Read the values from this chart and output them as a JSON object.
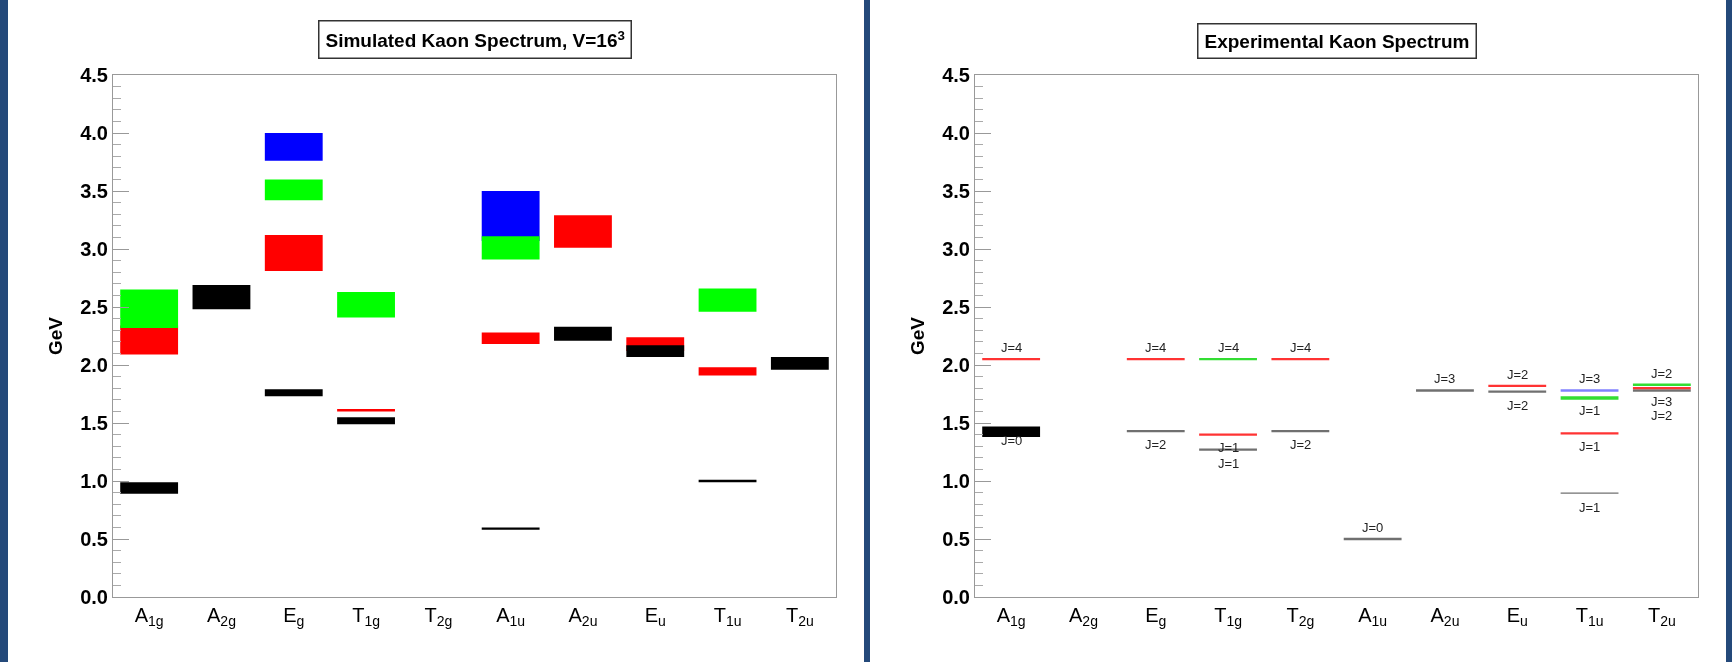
{
  "chart_data": [
    {
      "type": "bar",
      "title": "Simulated Kaon Spectrum, V=16$^{3}$",
      "ylabel": "GeV",
      "categories": [
        "A$_{1g}$",
        "A$_{2g}$",
        "E$_{g}$",
        "T$_{1g}$",
        "T$_{2g}$",
        "A$_{1u}$",
        "A$_{2u}$",
        "E$_{u}$",
        "T$_{1u}$",
        "T$_{2u}$"
      ],
      "ylim": [
        0,
        4.5
      ],
      "yticks": [
        {
          "value": 0,
          "label": "0.0"
        },
        {
          "value": 0.5,
          "label": "0.5"
        },
        {
          "value": 1,
          "label": "1.0"
        },
        {
          "value": 1.5,
          "label": "1.5"
        },
        {
          "value": 2,
          "label": "2.0"
        },
        {
          "value": 2.5,
          "label": "2.5"
        },
        {
          "value": 3,
          "label": "3.0"
        },
        {
          "value": 3.5,
          "label": "3.5"
        },
        {
          "value": 4,
          "label": "4.0"
        },
        {
          "value": 4.5,
          "label": "4.5"
        }
      ],
      "series": [
        {
          "color": "#ff0000",
          "base": [
            2.09,
            null,
            2.81,
            1.6,
            null,
            2.18,
            3.01,
            2.12,
            1.91,
            null
          ],
          "values": [
            0.25,
            null,
            0.31,
            0.02,
            null,
            0.1,
            0.28,
            0.12,
            0.07,
            null
          ]
        },
        {
          "color": "#0000ff",
          "base": [
            null,
            null,
            3.76,
            null,
            null,
            3.07,
            null,
            null,
            null,
            null
          ],
          "values": [
            null,
            null,
            0.24,
            null,
            null,
            0.43,
            null,
            null,
            null,
            null
          ]
        },
        {
          "color": "#000000",
          "base": [
            0.89,
            2.48,
            1.73,
            1.49,
            null,
            0.58,
            2.21,
            2.07,
            0.99,
            1.96
          ],
          "values": [
            0.1,
            0.21,
            0.06,
            0.06,
            null,
            0.02,
            0.12,
            0.1,
            0.02,
            0.11
          ]
        },
        {
          "color": "#00ff00",
          "base": [
            2.32,
            null,
            3.42,
            2.41,
            null,
            2.91,
            null,
            null,
            2.46,
            null
          ],
          "values": [
            0.33,
            null,
            0.18,
            0.22,
            null,
            0.2,
            null,
            null,
            0.2,
            null
          ]
        }
      ]
    },
    {
      "type": "bar",
      "title": "Experimental Kaon Spectrum",
      "ylabel": "GeV",
      "categories": [
        "A$_{1g}$",
        "A$_{2g}$",
        "E$_{g}$",
        "T$_{1g}$",
        "T$_{2g}$",
        "A$_{1u}$",
        "A$_{2u}$",
        "E$_{u}$",
        "T$_{1u}$",
        "T$_{2u}$"
      ],
      "ylim": [
        0,
        4.5
      ],
      "yticks": [
        {
          "value": 0,
          "label": "0.0"
        },
        {
          "value": 0.5,
          "label": "0.5"
        },
        {
          "value": 1,
          "label": "1.0"
        },
        {
          "value": 1.5,
          "label": "1.5"
        },
        {
          "value": 2,
          "label": "2.0"
        },
        {
          "value": 2.5,
          "label": "2.5"
        },
        {
          "value": 3,
          "label": "3.0"
        },
        {
          "value": 3.5,
          "label": "3.5"
        },
        {
          "value": 4,
          "label": "4.0"
        },
        {
          "value": 4.5,
          "label": "4.5"
        }
      ],
      "series": [
        {
          "color": "#000000",
          "base": [
            1.38,
            null,
            null,
            null,
            null,
            null,
            null,
            null,
            null,
            null
          ],
          "values": [
            0.09,
            null,
            null,
            null,
            null,
            null,
            null,
            null,
            null,
            null
          ]
        },
        {
          "color": "#707070",
          "base": [
            null,
            null,
            1.42,
            1.26,
            1.42,
            0.49,
            1.77,
            1.76,
            0.89,
            1.77
          ],
          "values": [
            null,
            null,
            0.02,
            0.02,
            0.02,
            0.02,
            0.02,
            0.02,
            0.01,
            0.02
          ]
        },
        {
          "color": "#ff3333",
          "base": [
            2.04,
            null,
            2.04,
            1.39,
            2.04,
            null,
            null,
            1.81,
            1.4,
            1.79
          ],
          "values": [
            0.02,
            null,
            0.02,
            0.02,
            0.02,
            null,
            null,
            0.02,
            0.02,
            0.02
          ]
        },
        {
          "color": "#33dd33",
          "base": [
            null,
            null,
            null,
            2.04,
            null,
            null,
            null,
            null,
            1.7,
            1.82
          ],
          "values": [
            null,
            null,
            null,
            0.02,
            null,
            null,
            null,
            null,
            0.03,
            0.02
          ]
        },
        {
          "color": "#8080ff",
          "base": [
            null,
            null,
            null,
            null,
            null,
            null,
            null,
            null,
            1.77,
            null
          ],
          "values": [
            null,
            null,
            null,
            null,
            null,
            null,
            null,
            null,
            0.02,
            null
          ]
        }
      ],
      "annotations": [
        {
          "text": "J=4",
          "x": "A$_{1g}$",
          "y": 2.06
        },
        {
          "text": "J=0",
          "x": "A$_{1g}$",
          "y": 1.47
        },
        {
          "text": "J=4",
          "x": "E$_{g}$",
          "y": 2.06
        },
        {
          "text": "J=2",
          "x": "E$_{g}$",
          "y": 1.44
        },
        {
          "text": "J=4",
          "x": "T$_{1g}$",
          "y": 2.06
        },
        {
          "text": "J=1",
          "x": "T$_{1g}$",
          "y": 1.41
        },
        {
          "text": "J=1",
          "x": "T$_{1g}$",
          "y": 1.28
        },
        {
          "text": "J=4",
          "x": "T$_{2g}$",
          "y": 2.06
        },
        {
          "text": "J=2",
          "x": "T$_{2g}$",
          "y": 1.44
        },
        {
          "text": "J=0",
          "x": "A$_{1u}$",
          "y": 0.51
        },
        {
          "text": "J=3",
          "x": "A$_{2u}$",
          "y": 1.79
        },
        {
          "text": "J=2",
          "x": "E$_{u}$",
          "y": 1.83
        },
        {
          "text": "J=2",
          "x": "E$_{u}$",
          "y": 1.78
        },
        {
          "text": "J=3",
          "x": "T$_{1u}$",
          "y": 1.79
        },
        {
          "text": "J=1",
          "x": "T$_{1u}$",
          "y": 1.73
        },
        {
          "text": "J=1",
          "x": "T$_{1u}$",
          "y": 1.42
        },
        {
          "text": "J=1",
          "x": "T$_{1u}$",
          "y": 0.9
        },
        {
          "text": "J=2",
          "x": "T$_{2u}$",
          "y": 1.84
        },
        {
          "text": "J=3",
          "x": "T$_{2u}$",
          "y": 1.81
        },
        {
          "text": "J=2",
          "x": "T$_{2u}$",
          "y": 1.79
        }
      ]
    }
  ]
}
